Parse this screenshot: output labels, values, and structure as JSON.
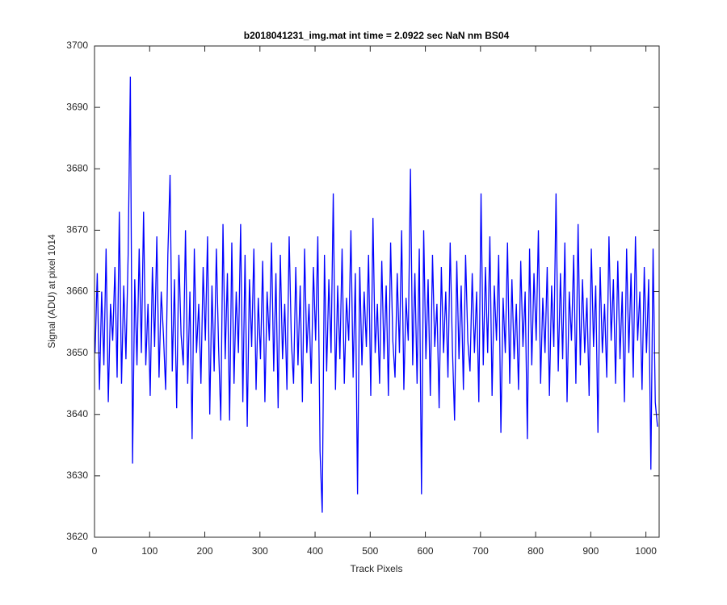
{
  "chart_data": {
    "type": "line",
    "title": "b2018041231_img.mat int time = 2.0922 sec  NaN nm BS04",
    "x_label": "Track Pixels",
    "y_label": "Signal (ADU) at pixel 1014",
    "color": "#0000ff",
    "xlim": [
      0,
      1024
    ],
    "ylim": [
      3620,
      3700
    ],
    "xticks": [
      0,
      100,
      200,
      300,
      400,
      500,
      600,
      700,
      800,
      900,
      1000
    ],
    "yticks": [
      3620,
      3630,
      3640,
      3650,
      3660,
      3670,
      3680,
      3690,
      3700
    ],
    "x": [
      1,
      5,
      9,
      13,
      17,
      21,
      25,
      29,
      33,
      37,
      41,
      45,
      49,
      53,
      57,
      61,
      65,
      69,
      73,
      77,
      81,
      85,
      89,
      93,
      97,
      101,
      105,
      109,
      113,
      117,
      121,
      125,
      129,
      133,
      137,
      141,
      145,
      149,
      153,
      157,
      161,
      165,
      169,
      173,
      177,
      181,
      185,
      189,
      193,
      197,
      201,
      205,
      209,
      213,
      217,
      221,
      225,
      229,
      233,
      237,
      241,
      245,
      249,
      253,
      257,
      261,
      265,
      269,
      273,
      277,
      281,
      285,
      289,
      293,
      297,
      301,
      305,
      309,
      313,
      317,
      321,
      325,
      329,
      333,
      337,
      341,
      345,
      349,
      353,
      357,
      361,
      365,
      369,
      373,
      377,
      381,
      385,
      389,
      393,
      397,
      401,
      405,
      409,
      413,
      417,
      421,
      425,
      429,
      433,
      437,
      441,
      445,
      449,
      453,
      457,
      461,
      465,
      469,
      473,
      477,
      481,
      485,
      489,
      493,
      497,
      501,
      505,
      509,
      513,
      517,
      521,
      525,
      529,
      533,
      537,
      541,
      545,
      549,
      553,
      557,
      561,
      565,
      569,
      573,
      577,
      581,
      585,
      589,
      593,
      597,
      601,
      605,
      609,
      613,
      617,
      621,
      625,
      629,
      633,
      637,
      641,
      645,
      649,
      653,
      657,
      661,
      665,
      669,
      673,
      677,
      681,
      685,
      689,
      693,
      697,
      701,
      705,
      709,
      713,
      717,
      721,
      725,
      729,
      733,
      737,
      741,
      745,
      749,
      753,
      757,
      761,
      765,
      769,
      773,
      777,
      781,
      785,
      789,
      793,
      797,
      801,
      805,
      809,
      813,
      817,
      821,
      825,
      829,
      833,
      837,
      841,
      845,
      849,
      853,
      857,
      861,
      865,
      869,
      873,
      877,
      881,
      885,
      889,
      893,
      897,
      901,
      905,
      909,
      913,
      917,
      921,
      925,
      929,
      933,
      937,
      941,
      945,
      949,
      953,
      957,
      961,
      965,
      969,
      973,
      977,
      981,
      985,
      989,
      993,
      997,
      1001,
      1005,
      1009,
      1013,
      1017,
      1021
    ],
    "values": [
      3650,
      3663,
      3644,
      3660,
      3648,
      3667,
      3642,
      3658,
      3652,
      3664,
      3646,
      3673,
      3645,
      3661,
      3649,
      3666,
      3695,
      3632,
      3662,
      3648,
      3667,
      3650,
      3673,
      3648,
      3658,
      3643,
      3664,
      3651,
      3669,
      3646,
      3660,
      3653,
      3644,
      3666,
      3679,
      3647,
      3662,
      3641,
      3666,
      3653,
      3648,
      3670,
      3645,
      3660,
      3636,
      3667,
      3650,
      3658,
      3645,
      3664,
      3652,
      3669,
      3640,
      3661,
      3647,
      3667,
      3651,
      3639,
      3671,
      3649,
      3663,
      3639,
      3668,
      3645,
      3660,
      3650,
      3671,
      3642,
      3666,
      3638,
      3662,
      3651,
      3667,
      3644,
      3659,
      3649,
      3665,
      3642,
      3660,
      3652,
      3668,
      3647,
      3663,
      3641,
      3666,
      3649,
      3658,
      3644,
      3669,
      3652,
      3645,
      3664,
      3648,
      3661,
      3642,
      3667,
      3650,
      3658,
      3645,
      3664,
      3652,
      3669,
      3634,
      3624,
      3666,
      3647,
      3662,
      3650,
      3676,
      3644,
      3661,
      3649,
      3667,
      3645,
      3659,
      3652,
      3670,
      3646,
      3663,
      3627,
      3664,
      3648,
      3660,
      3651,
      3666,
      3643,
      3672,
      3650,
      3658,
      3645,
      3665,
      3649,
      3661,
      3643,
      3668,
      3652,
      3646,
      3663,
      3650,
      3670,
      3644,
      3659,
      3652,
      3680,
      3648,
      3663,
      3645,
      3667,
      3627,
      3670,
      3649,
      3662,
      3643,
      3666,
      3651,
      3658,
      3641,
      3664,
      3650,
      3660,
      3646,
      3668,
      3651,
      3639,
      3665,
      3649,
      3661,
      3644,
      3666,
      3652,
      3647,
      3663,
      3650,
      3660,
      3642,
      3676,
      3648,
      3664,
      3650,
      3669,
      3643,
      3661,
      3652,
      3666,
      3637,
      3659,
      3650,
      3668,
      3645,
      3662,
      3649,
      3658,
      3644,
      3665,
      3651,
      3660,
      3636,
      3667,
      3648,
      3663,
      3652,
      3670,
      3645,
      3659,
      3650,
      3664,
      3643,
      3661,
      3651,
      3676,
      3647,
      3663,
      3649,
      3668,
      3642,
      3660,
      3652,
      3666,
      3645,
      3671,
      3648,
      3662,
      3650,
      3659,
      3643,
      3667,
      3651,
      3661,
      3637,
      3664,
      3650,
      3658,
      3646,
      3669,
      3652,
      3662,
      3645,
      3665,
      3649,
      3660,
      3642,
      3667,
      3650,
      3663,
      3646,
      3669,
      3652,
      3660,
      3644,
      3664,
      3650,
      3662,
      3631,
      3667,
      3642,
      3638
    ]
  }
}
